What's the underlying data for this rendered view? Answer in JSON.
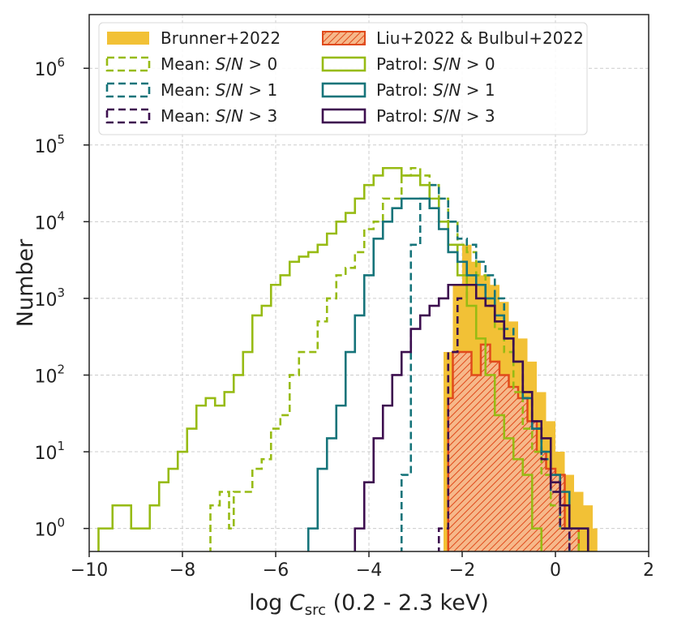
{
  "chart_data": {
    "type": "histogram",
    "xlabel": "log C_src (0.2 - 2.3 keV)",
    "xlabel_parts": {
      "prefix": "log ",
      "var": "C",
      "sub": "src",
      "suffix": " (0.2 - 2.3 keV)"
    },
    "ylabel": "Number",
    "xlim": [
      -10,
      2
    ],
    "ylim_log10": [
      -0.3,
      6.7
    ],
    "yscale": "log",
    "grid": true,
    "legend_location": "top",
    "xticks": [
      {
        "value": -10,
        "label": "−10"
      },
      {
        "value": -8,
        "label": "−8"
      },
      {
        "value": -6,
        "label": "−6"
      },
      {
        "value": -4,
        "label": "−4"
      },
      {
        "value": -2,
        "label": "−2"
      },
      {
        "value": 0,
        "label": "0"
      },
      {
        "value": 2,
        "label": "2"
      }
    ],
    "yticks": [
      {
        "exp": 0,
        "base": "10",
        "sup": "0"
      },
      {
        "exp": 1,
        "base": "10",
        "sup": "1"
      },
      {
        "exp": 2,
        "base": "10",
        "sup": "2"
      },
      {
        "exp": 3,
        "base": "10",
        "sup": "3"
      },
      {
        "exp": 4,
        "base": "10",
        "sup": "4"
      },
      {
        "exp": 5,
        "base": "10",
        "sup": "5"
      },
      {
        "exp": 6,
        "base": "10",
        "sup": "6"
      }
    ],
    "series": [
      {
        "name": "Brunner+2022",
        "kind": "filled",
        "color": "#f2c136",
        "edges": [
          -2.4,
          -2.2,
          -2.0,
          -1.8,
          -1.6,
          -1.4,
          -1.2,
          -1.0,
          -0.8,
          -0.6,
          -0.4,
          -0.2,
          0.0,
          0.2,
          0.4,
          0.6,
          0.8,
          0.9
        ],
        "values": [
          200,
          1500,
          5000,
          3000,
          2000,
          1500,
          900,
          500,
          300,
          150,
          60,
          25,
          10,
          5,
          3,
          2,
          1
        ]
      },
      {
        "name": "Liu+2022 & Bulbul+2022",
        "kind": "hatched",
        "color": "#e04a1b",
        "fill": "#f6b88a",
        "edges": [
          -2.3,
          -2.2,
          -2.0,
          -1.8,
          -1.6,
          -1.4,
          -1.2,
          -1.0,
          -0.8,
          -0.6,
          -0.4,
          -0.2,
          0.0,
          0.2,
          0.5
        ],
        "values": [
          50,
          200,
          200,
          100,
          250,
          150,
          100,
          70,
          50,
          25,
          10,
          6,
          5,
          1
        ]
      },
      {
        "name": "Mean: S/N > 0",
        "kind": "step",
        "dashed": true,
        "color": "#97bb14",
        "edges": [
          -7.4,
          -7.2,
          -7.0,
          -6.9,
          -6.7,
          -6.5,
          -6.3,
          -6.1,
          -5.9,
          -5.7,
          -5.5,
          -5.3,
          -5.1,
          -4.9,
          -4.7,
          -4.5,
          -4.3,
          -4.1,
          -3.9,
          -3.7,
          -3.5,
          -3.3,
          -3.1,
          -2.9,
          -2.7,
          -2.5,
          -2.3,
          -2.1,
          -1.9,
          -1.7,
          -1.5,
          -1.3,
          -1.1,
          -0.9,
          -0.7,
          -0.5,
          -0.3,
          -0.1,
          0.1,
          0.3,
          0.5
        ],
        "values": [
          2,
          3,
          1,
          3,
          3,
          6,
          8,
          20,
          30,
          100,
          200,
          200,
          500,
          1000,
          2000,
          2500,
          4000,
          8000,
          10000,
          20000,
          20000,
          40000,
          50000,
          40000,
          30000,
          20000,
          10000,
          5000,
          4000,
          2000,
          1000,
          400,
          200,
          60,
          20,
          10,
          5,
          2,
          1,
          1
        ]
      },
      {
        "name": "Mean: S/N > 1",
        "kind": "step",
        "dashed": true,
        "color": "#16747a",
        "edges": [
          -3.3,
          -3.1,
          -2.9,
          -2.7,
          -2.5,
          -2.3,
          -2.1,
          -1.9,
          -1.7,
          -1.5,
          -1.3,
          -1.1,
          -0.9,
          -0.7,
          -0.5,
          -0.3,
          -0.1,
          0.1,
          0.3
        ],
        "values": [
          5,
          5000,
          20000,
          30000,
          20000,
          10000,
          6000,
          5000,
          3000,
          2000,
          1000,
          400,
          150,
          60,
          20,
          8,
          3,
          1
        ]
      },
      {
        "name": "Mean: S/N > 3",
        "kind": "step",
        "dashed": true,
        "color": "#3d0e4f",
        "edges": [
          -2.5,
          -2.3,
          -2.1,
          -1.9,
          -1.7,
          -1.5,
          -1.3,
          -1.1,
          -0.9,
          -0.7,
          -0.5,
          -0.3,
          -0.1,
          0.1,
          0.3
        ],
        "values": [
          1,
          200,
          1000,
          1500,
          1500,
          800,
          500,
          300,
          150,
          50,
          20,
          8,
          3,
          1
        ]
      },
      {
        "name": "Patrol: S/N > 0",
        "kind": "step",
        "dashed": false,
        "color": "#97bb14",
        "edges": [
          -9.8,
          -9.5,
          -9.1,
          -8.7,
          -8.5,
          -8.3,
          -8.1,
          -7.9,
          -7.7,
          -7.5,
          -7.3,
          -7.1,
          -6.9,
          -6.7,
          -6.5,
          -6.3,
          -6.1,
          -5.9,
          -5.7,
          -5.5,
          -5.3,
          -5.1,
          -4.9,
          -4.7,
          -4.5,
          -4.3,
          -4.1,
          -3.9,
          -3.7,
          -3.5,
          -3.3,
          -3.1,
          -2.9,
          -2.7,
          -2.5,
          -2.3,
          -2.1,
          -1.9,
          -1.7,
          -1.5,
          -1.3,
          -1.1,
          -0.9,
          -0.7,
          -0.5,
          -0.3
        ],
        "values": [
          1,
          2,
          1,
          2,
          4,
          6,
          10,
          20,
          40,
          50,
          40,
          60,
          100,
          200,
          600,
          800,
          1500,
          2000,
          3000,
          3500,
          4000,
          5000,
          7000,
          10000,
          13000,
          20000,
          30000,
          40000,
          50000,
          50000,
          40000,
          40000,
          30000,
          20000,
          10000,
          5000,
          2000,
          800,
          300,
          100,
          30,
          15,
          8,
          5,
          1
        ]
      },
      {
        "name": "Patrol: S/N > 1",
        "kind": "step",
        "dashed": false,
        "color": "#16747a",
        "edges": [
          -5.3,
          -5.1,
          -4.9,
          -4.7,
          -4.5,
          -4.3,
          -4.1,
          -3.9,
          -3.7,
          -3.5,
          -3.3,
          -3.1,
          -2.9,
          -2.7,
          -2.5,
          -2.3,
          -2.1,
          -1.9,
          -1.7,
          -1.5,
          -1.3,
          -1.1,
          -0.9,
          -0.7,
          -0.5,
          -0.3,
          -0.1,
          0.1,
          0.3,
          0.5,
          0.7
        ],
        "values": [
          1,
          6,
          15,
          40,
          200,
          600,
          2000,
          6000,
          10000,
          15000,
          20000,
          20000,
          20000,
          15000,
          8000,
          4000,
          3000,
          2000,
          1500,
          1000,
          600,
          300,
          150,
          50,
          20,
          10,
          5,
          3,
          1,
          1
        ]
      },
      {
        "name": "Patrol: S/N > 3",
        "kind": "step",
        "dashed": false,
        "color": "#3d0e4f",
        "edges": [
          -4.3,
          -4.1,
          -3.9,
          -3.7,
          -3.5,
          -3.3,
          -3.1,
          -2.9,
          -2.7,
          -2.5,
          -2.3,
          -2.1,
          -1.9,
          -1.7,
          -1.5,
          -1.3,
          -1.1,
          -0.9,
          -0.7,
          -0.5,
          -0.3,
          -0.1,
          0.1,
          0.3,
          0.5,
          0.7
        ],
        "values": [
          1,
          4,
          15,
          40,
          100,
          200,
          400,
          600,
          800,
          1000,
          1500,
          1500,
          1500,
          1000,
          800,
          500,
          300,
          150,
          60,
          25,
          15,
          4,
          2,
          1,
          1
        ]
      }
    ],
    "legend": [
      {
        "label": "Brunner+2022",
        "kind": "filled",
        "color": "#f2c136"
      },
      {
        "label": "Mean: S/N > 0",
        "kind": "dashed",
        "color": "#97bb14"
      },
      {
        "label": "Mean: S/N > 1",
        "kind": "dashed",
        "color": "#16747a"
      },
      {
        "label": "Mean: S/N > 3",
        "kind": "dashed",
        "color": "#3d0e4f"
      },
      {
        "label": "Liu+2022 & Bulbul+2022",
        "kind": "hatched",
        "color": "#e04a1b"
      },
      {
        "label": "Patrol: S/N > 0",
        "kind": "solid",
        "color": "#97bb14"
      },
      {
        "label": "Patrol: S/N > 1",
        "kind": "solid",
        "color": "#16747a"
      },
      {
        "label": "Patrol: S/N > 3",
        "kind": "solid",
        "color": "#3d0e4f"
      }
    ]
  }
}
